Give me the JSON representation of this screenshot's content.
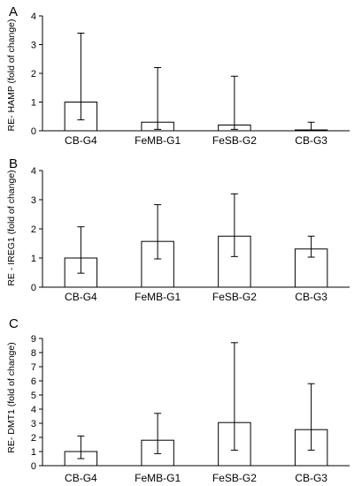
{
  "chart_data": [
    {
      "type": "bar",
      "panel_label": "A",
      "categories": [
        "CB-G4",
        "FeMB-G1",
        "FeSB-G2",
        "CB-G3"
      ],
      "values": [
        1.0,
        0.3,
        0.2,
        0.03
      ],
      "error_low": [
        0.38,
        0.05,
        0.05,
        0.0
      ],
      "error_high": [
        3.4,
        2.2,
        1.9,
        0.3
      ],
      "ylabel": "RE- HAMP (fold of change)",
      "ylim": [
        0,
        4
      ],
      "yticks": [
        0,
        1,
        2,
        3,
        4
      ]
    },
    {
      "type": "bar",
      "panel_label": "B",
      "categories": [
        "CB-G4",
        "FeMB-G1",
        "FeSB-G2",
        "CB-G3"
      ],
      "values": [
        1.0,
        1.57,
        1.75,
        1.31
      ],
      "error_low": [
        0.48,
        0.97,
        1.05,
        1.03
      ],
      "error_high": [
        2.07,
        2.83,
        3.2,
        1.75
      ],
      "ylabel": "RE - IREG1 (fold of change)",
      "ylim": [
        0,
        4
      ],
      "yticks": [
        0,
        1,
        2,
        3,
        4
      ]
    },
    {
      "type": "bar",
      "panel_label": "C",
      "categories": [
        "CB-G4",
        "FeMB-G1",
        "FeSB-G2",
        "CB-G3"
      ],
      "values": [
        1.0,
        1.8,
        3.05,
        2.55
      ],
      "error_low": [
        0.5,
        0.85,
        1.1,
        1.1
      ],
      "error_high": [
        2.1,
        3.7,
        8.7,
        5.8
      ],
      "ylabel": "RE- DMT1 (fold of change)",
      "ylim": [
        0,
        9
      ],
      "yticks": [
        0,
        1,
        2,
        3,
        4,
        5,
        6,
        7,
        8,
        9
      ]
    }
  ]
}
